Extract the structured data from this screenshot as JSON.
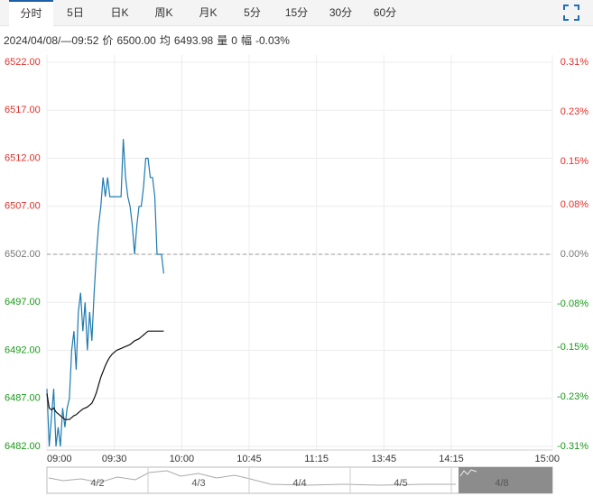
{
  "tabs": [
    "分时",
    "5日",
    "日K",
    "周K",
    "月K",
    "5分",
    "15分",
    "30分",
    "60分"
  ],
  "info": {
    "datetime": "2024/04/08/—09:52",
    "price_label": "价",
    "price": "6500.00",
    "avg_label": "均",
    "avg": "6493.98",
    "vol_label": "量",
    "vol": "0",
    "amp_label": "幅",
    "amp": "-0.03%"
  },
  "chart_data": {
    "type": "line",
    "x": [
      0,
      1,
      2,
      3,
      4,
      5,
      6,
      7,
      8,
      9,
      10,
      11,
      12,
      13,
      14,
      15,
      16,
      17,
      18,
      19,
      20,
      21,
      22,
      23,
      24,
      25,
      26,
      27,
      28,
      29,
      30,
      31,
      32,
      33,
      34,
      35,
      36,
      37,
      38,
      39,
      40,
      41,
      42,
      43,
      44,
      45,
      46,
      47,
      48,
      49,
      50,
      51,
      52
    ],
    "series": [
      {
        "color": "#1f7ab0",
        "values": [
          6488,
          6482,
          6485,
          6488,
          6482,
          6484,
          6482,
          6486,
          6484,
          6486,
          6487,
          6492,
          6494,
          6490,
          6496,
          6498,
          6494,
          6497,
          6492,
          6496,
          6493,
          6498,
          6502,
          6505,
          6507,
          6510,
          6508,
          6510,
          6508,
          6508,
          6508,
          6508,
          6508,
          6508,
          6514,
          6510,
          6508,
          6507,
          6505,
          6502,
          6505,
          6507,
          6507,
          6509,
          6512,
          6512,
          6510,
          6510,
          6508,
          6502,
          6502,
          6502,
          6500
        ]
      },
      {
        "color": "#111111",
        "values": [
          6487.5,
          6486,
          6485.8,
          6486,
          6485.6,
          6485.4,
          6485.2,
          6485,
          6484.8,
          6484.8,
          6484.8,
          6485,
          6485.2,
          6485.3,
          6485.5,
          6485.7,
          6485.9,
          6486,
          6486.1,
          6486.3,
          6486.5,
          6487,
          6487.6,
          6488.4,
          6489.2,
          6489.8,
          6490.4,
          6490.9,
          6491.3,
          6491.6,
          6491.8,
          6492,
          6492.1,
          6492.2,
          6492.3,
          6492.4,
          6492.5,
          6492.6,
          6492.8,
          6493,
          6493.1,
          6493.2,
          6493.4,
          6493.6,
          6493.8,
          6494,
          6494,
          6494,
          6494,
          6494,
          6494,
          6494,
          6494
        ]
      }
    ],
    "xlim": [
      0,
      225
    ],
    "xticks": [
      {
        "value": 0,
        "label": "09:00"
      },
      {
        "value": 30,
        "label": "09:30"
      },
      {
        "value": 60,
        "label": "10:00"
      },
      {
        "value": 90,
        "label": "10:45"
      },
      {
        "value": 120,
        "label": "11:15"
      },
      {
        "value": 150,
        "label": "13:45"
      },
      {
        "value": 180,
        "label": "14:15"
      },
      {
        "value": 225,
        "label": "15:00"
      }
    ],
    "ylim": [
      6482,
      6522
    ],
    "yticks": [
      {
        "value": 6522,
        "label": "6522.00"
      },
      {
        "value": 6517,
        "label": "6517.00"
      },
      {
        "value": 6512,
        "label": "6512.00"
      },
      {
        "value": 6507,
        "label": "6507.00"
      },
      {
        "value": 6502,
        "label": "6502.00"
      },
      {
        "value": 6497,
        "label": "6497.00"
      },
      {
        "value": 6492,
        "label": "6492.00"
      },
      {
        "value": 6487,
        "label": "6487.00"
      },
      {
        "value": 6482,
        "label": "6482.00"
      }
    ],
    "y2lim": [
      -0.31,
      0.31
    ],
    "y2ticks": [
      {
        "value": 0.31,
        "label": "0.31%"
      },
      {
        "value": 0.23,
        "label": "0.23%"
      },
      {
        "value": 0.15,
        "label": "0.15%"
      },
      {
        "value": 0.08,
        "label": "0.08%"
      },
      {
        "value": 0,
        "label": "0.00%"
      },
      {
        "value": -0.08,
        "label": "-0.08%"
      },
      {
        "value": -0.15,
        "label": "-0.15%"
      },
      {
        "value": -0.23,
        "label": "-0.23%"
      },
      {
        "value": -0.31,
        "label": "-0.31%"
      }
    ],
    "baseline": 6502,
    "up_color": "#e0302a",
    "down_color": "#1a9a1a",
    "grid": true
  },
  "navigator": {
    "dates": [
      "4/2",
      "4/3",
      "4/4",
      "4/5",
      "4/8"
    ]
  }
}
